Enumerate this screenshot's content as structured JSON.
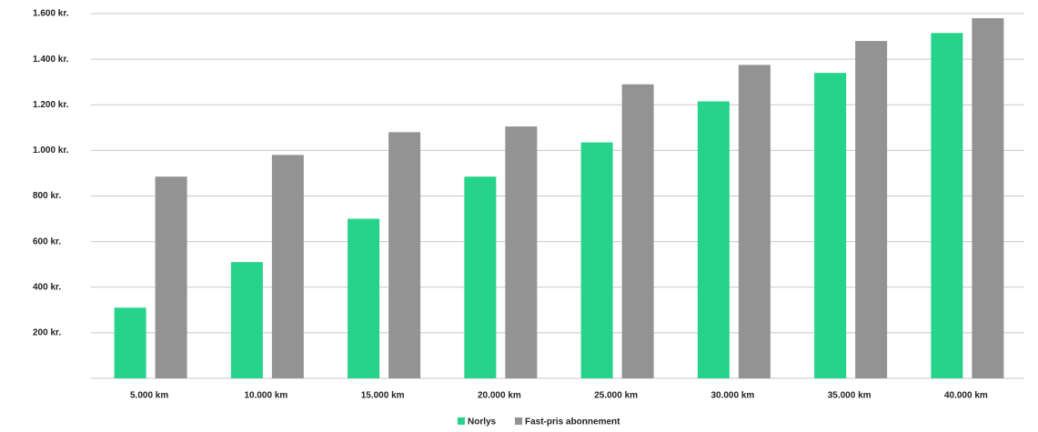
{
  "chart_data": {
    "type": "bar",
    "categories": [
      "5.000 km",
      "10.000 km",
      "15.000 km",
      "20.000 km",
      "25.000 km",
      "30.000 km",
      "35.000 km",
      "40.000 km"
    ],
    "series": [
      {
        "name": "Norlys",
        "color": "#26d38a",
        "values": [
          310,
          510,
          700,
          885,
          1035,
          1215,
          1340,
          1515
        ]
      },
      {
        "name": "Fast-pris abonnement",
        "color": "#939393",
        "values": [
          885,
          980,
          1080,
          1105,
          1290,
          1375,
          1480,
          1580
        ]
      }
    ],
    "ylim": [
      0,
      1600
    ],
    "yticks": [
      {
        "value": 200,
        "label": "200 kr."
      },
      {
        "value": 400,
        "label": "400 kr."
      },
      {
        "value": 600,
        "label": "600 kr."
      },
      {
        "value": 800,
        "label": "800 kr."
      },
      {
        "value": 1000,
        "label": "1.000 kr."
      },
      {
        "value": 1200,
        "label": "1.200 kr."
      },
      {
        "value": 1400,
        "label": "1.400 kr."
      },
      {
        "value": 1600,
        "label": "1.600 kr."
      }
    ],
    "grid": true
  }
}
